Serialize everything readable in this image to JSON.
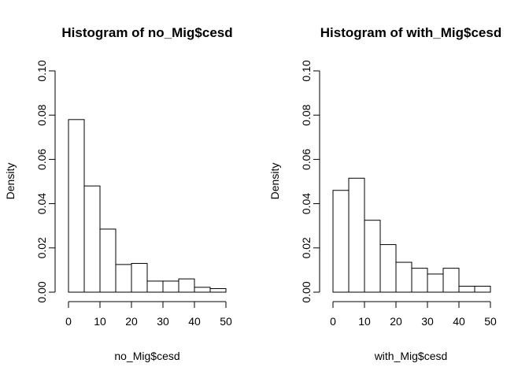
{
  "chart_data": [
    {
      "type": "bar",
      "title": "Histogram of no_Mig$cesd",
      "xlabel": "no_Mig$cesd",
      "ylabel": "Density",
      "x_bin_edges": [
        0,
        5,
        10,
        15,
        20,
        25,
        30,
        35,
        40,
        45,
        50
      ],
      "values": [
        0.078,
        0.048,
        0.0285,
        0.0125,
        0.013,
        0.005,
        0.005,
        0.006,
        0.0022,
        0.0016
      ],
      "xlim": [
        0,
        50
      ],
      "ylim": [
        0,
        0.1
      ],
      "x_ticks": [
        "0",
        "10",
        "20",
        "30",
        "40",
        "50"
      ],
      "y_ticks": [
        "0.00",
        "0.02",
        "0.04",
        "0.06",
        "0.08",
        "0.10"
      ]
    },
    {
      "type": "bar",
      "title": "Histogram of with_Mig$cesd",
      "xlabel": "with_Mig$cesd",
      "ylabel": "Density",
      "x_bin_edges": [
        0,
        5,
        10,
        15,
        20,
        25,
        30,
        35,
        40,
        45,
        50
      ],
      "values": [
        0.046,
        0.0515,
        0.0325,
        0.0215,
        0.0135,
        0.0108,
        0.0082,
        0.0108,
        0.0027,
        0.0027
      ],
      "xlim": [
        0,
        50
      ],
      "ylim": [
        0,
        0.1
      ],
      "x_ticks": [
        "0",
        "10",
        "20",
        "30",
        "40",
        "50"
      ],
      "y_ticks": [
        "0.00",
        "0.02",
        "0.04",
        "0.06",
        "0.08",
        "0.10"
      ]
    }
  ]
}
